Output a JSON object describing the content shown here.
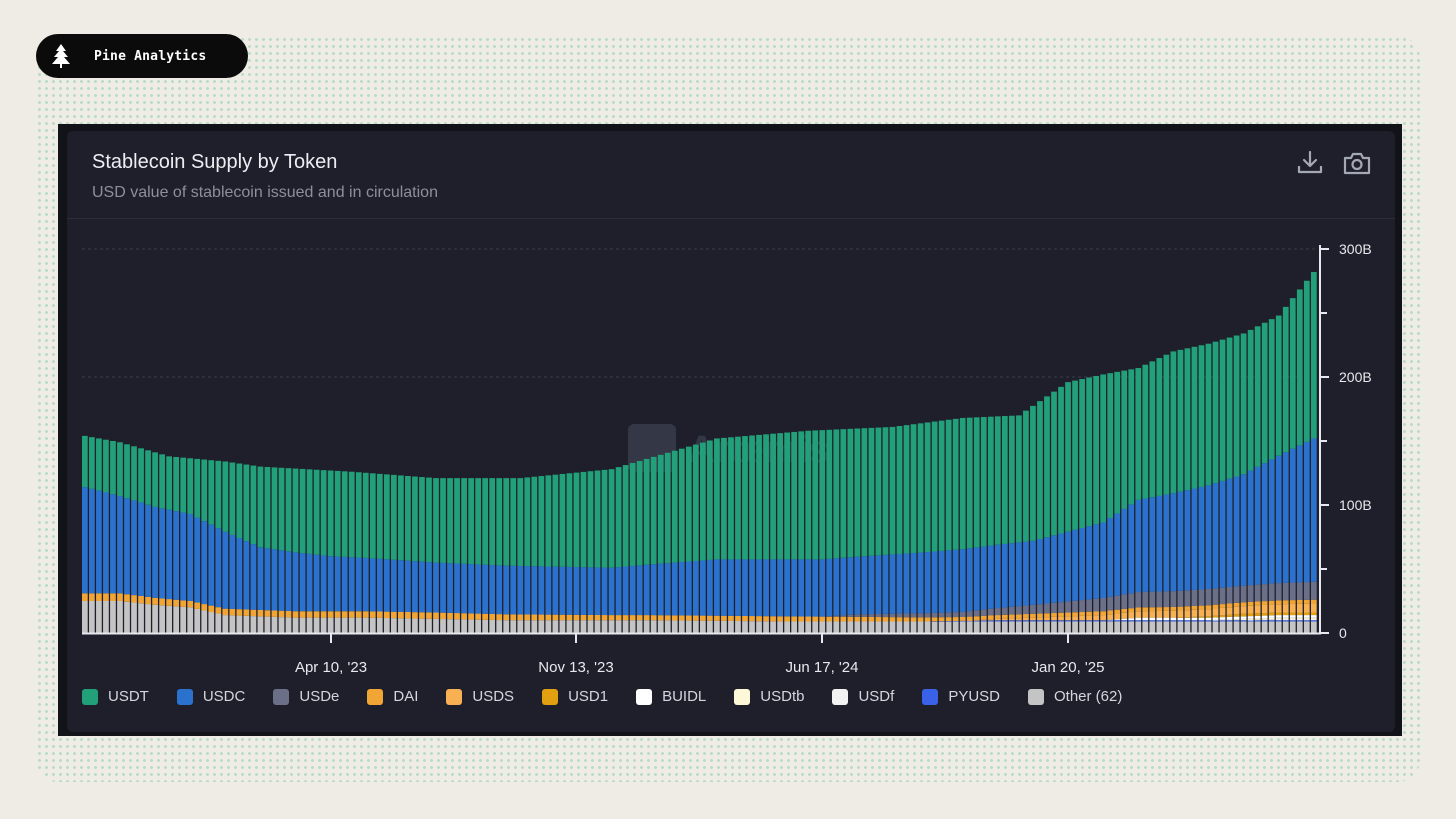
{
  "brand": {
    "name": "Pine Analytics",
    "icon": "pine-tree-icon"
  },
  "card": {
    "title": "Stablecoin Supply by Token",
    "subtitle": "USD value of stablecoin issued and in circulation",
    "actions": [
      {
        "name": "download",
        "icon": "download-icon"
      },
      {
        "name": "screenshot",
        "icon": "camera-icon"
      }
    ],
    "watermark": "Artemis"
  },
  "chart_data": {
    "type": "bar",
    "stacked": true,
    "x_labels": [
      "Apr 10, '23",
      "Nov 13, '23",
      "Jun 17, '24",
      "Jan 20, '25"
    ],
    "y_axis": {
      "position": "right",
      "ticks": [
        "0",
        "100B",
        "200B",
        "300B"
      ],
      "tick_values": [
        0,
        100,
        200,
        300
      ],
      "unit": "B USD",
      "range": [
        0,
        300
      ]
    },
    "grid": true,
    "legend_position": "bottom",
    "colors": {
      "USDT": "#22a07a",
      "USDC": "#2b72cf",
      "USDe": "#6c6f88",
      "DAI": "#f0a535",
      "USDS": "#f7b052",
      "USD1": "#e0a010",
      "BUIDL": "#ffffff",
      "USDtb": "#fdf8d8",
      "USDf": "#f2f2f2",
      "PYUSD": "#3a62e8",
      "Other (62)": "#c4c4c4"
    },
    "series_names": [
      "USDT",
      "USDC",
      "USDe",
      "DAI",
      "USDS",
      "USD1",
      "BUIDL",
      "USDtb",
      "USDf",
      "PYUSD",
      "Other (62)"
    ],
    "anchors": {
      "description_index_range": [
        0,
        175
      ],
      "total": [
        [
          0,
          154
        ],
        [
          5,
          149
        ],
        [
          12,
          138
        ],
        [
          20,
          134
        ],
        [
          25,
          130
        ],
        [
          38,
          126
        ],
        [
          50,
          121
        ],
        [
          62,
          121
        ],
        [
          75,
          128
        ],
        [
          90,
          152
        ],
        [
          103,
          158
        ],
        [
          115,
          161
        ],
        [
          125,
          168
        ],
        [
          133,
          170
        ],
        [
          140,
          196
        ],
        [
          145,
          202
        ],
        [
          150,
          207
        ],
        [
          155,
          220
        ],
        [
          160,
          226
        ],
        [
          165,
          234
        ],
        [
          170,
          248
        ],
        [
          175,
          282
        ]
      ],
      "USDC": [
        [
          0,
          83
        ],
        [
          5,
          76
        ],
        [
          10,
          71
        ],
        [
          15,
          68
        ],
        [
          20,
          60
        ],
        [
          25,
          49
        ],
        [
          35,
          43
        ],
        [
          50,
          39
        ],
        [
          60,
          38
        ],
        [
          75,
          37
        ],
        [
          90,
          44
        ],
        [
          110,
          45
        ],
        [
          125,
          49
        ],
        [
          135,
          50
        ],
        [
          145,
          59
        ],
        [
          150,
          72
        ],
        [
          160,
          81
        ],
        [
          165,
          87
        ],
        [
          175,
          112
        ]
      ],
      "USDe": [
        [
          0,
          0
        ],
        [
          105,
          0
        ],
        [
          110,
          2
        ],
        [
          125,
          4
        ],
        [
          135,
          7
        ],
        [
          150,
          12
        ],
        [
          165,
          13
        ],
        [
          175,
          14
        ]
      ],
      "DAI": [
        [
          0,
          6
        ],
        [
          5,
          6
        ],
        [
          15,
          5
        ],
        [
          25,
          5
        ],
        [
          50,
          5
        ],
        [
          75,
          4
        ],
        [
          100,
          4
        ],
        [
          125,
          3
        ],
        [
          150,
          3
        ],
        [
          175,
          3
        ]
      ],
      "USDS": [
        [
          0,
          0
        ],
        [
          125,
          0
        ],
        [
          130,
          1
        ],
        [
          140,
          3
        ],
        [
          150,
          5
        ],
        [
          165,
          6
        ],
        [
          175,
          7
        ]
      ],
      "USD1": [
        [
          0,
          0
        ],
        [
          155,
          0
        ],
        [
          160,
          1
        ],
        [
          165,
          2
        ],
        [
          175,
          2
        ]
      ],
      "BUIDL": [
        [
          0,
          0
        ],
        [
          145,
          0
        ],
        [
          150,
          2
        ],
        [
          165,
          2
        ],
        [
          175,
          2
        ]
      ],
      "USDtb": [
        [
          0,
          0
        ],
        [
          160,
          0
        ],
        [
          165,
          1
        ],
        [
          175,
          1
        ]
      ],
      "USDf": [
        [
          0,
          0
        ],
        [
          165,
          0
        ],
        [
          170,
          1
        ],
        [
          175,
          1
        ]
      ],
      "PYUSD": [
        [
          0,
          0
        ],
        [
          120,
          0
        ],
        [
          130,
          1
        ],
        [
          150,
          1
        ],
        [
          175,
          1
        ]
      ],
      "Other (62)": [
        [
          0,
          25
        ],
        [
          5,
          25
        ],
        [
          10,
          22
        ],
        [
          15,
          20
        ],
        [
          20,
          14
        ],
        [
          30,
          12
        ],
        [
          40,
          12
        ],
        [
          60,
          10
        ],
        [
          80,
          10
        ],
        [
          100,
          9
        ],
        [
          120,
          9
        ],
        [
          140,
          9
        ],
        [
          160,
          9
        ],
        [
          175,
          9
        ]
      ]
    },
    "watermark": "Artemis"
  }
}
